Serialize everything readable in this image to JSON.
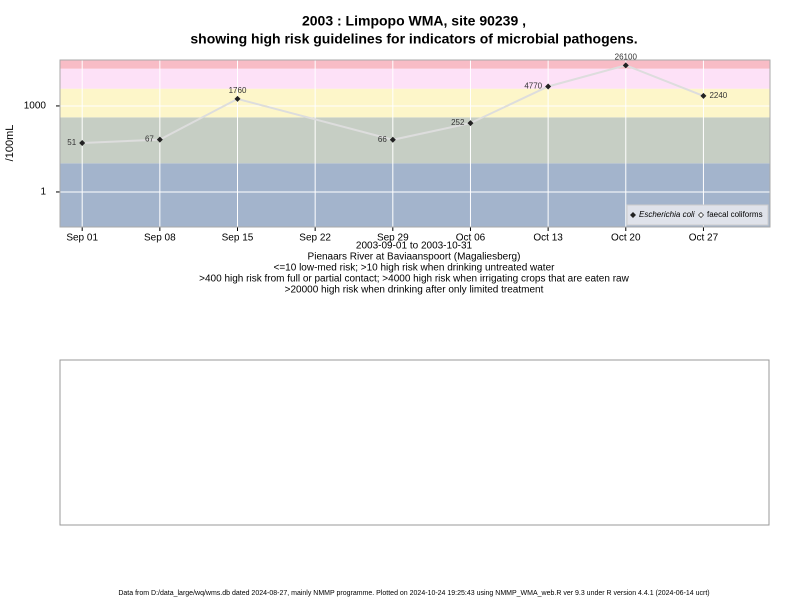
{
  "chart_data": {
    "type": "line",
    "title": "2003 : Limpopo WMA, site 90239 ,",
    "title2": "showing high risk guidelines for indicators of microbial pathogens.",
    "ylabel": "/100mL",
    "subtitle_lines": [
      "2003-09-01 to 2003-10-31",
      "Pienaars River at Baviaanspoort (Magaliesberg)",
      "<=10 low-med risk; >10 high risk when drinking untreated water",
      ">400 high risk from full or partial contact; >4000 high risk when irrigating crops that are eaten raw",
      ">20000 high risk when drinking after only limited treatment"
    ],
    "footer": "Data from D:/data_large/wq/wms.db dated 2024-08-27, mainly NMMP programme. Plotted on 2024-10-24 19:25:43 using NMMP_WMA_web.R ver 9.3 under R version 4.4.1 (2024-06-14 ucrt)",
    "x": [
      "2003-09-01",
      "2003-09-08",
      "2003-09-15",
      "2003-09-29",
      "2003-10-06",
      "2003-10-13",
      "2003-10-20",
      "2003-10-27"
    ],
    "series": [
      {
        "name": "Escherichia coli",
        "color": "#222222",
        "line_color": "#dddddd",
        "values": [
          51,
          67,
          1760,
          66,
          252,
          4770,
          26100,
          2240
        ]
      },
      {
        "name": "faecal coliforms",
        "color": "#222222",
        "line_color": "#dddddd",
        "values": [
          null,
          null,
          null,
          null,
          null,
          null,
          null,
          null
        ]
      }
    ],
    "xlim": [
      "2003-08-30",
      "2003-11-02"
    ],
    "xticks": [
      {
        "value": "2003-09-01",
        "label": "Sep 01"
      },
      {
        "value": "2003-09-08",
        "label": "Sep 08"
      },
      {
        "value": "2003-09-15",
        "label": "Sep 15"
      },
      {
        "value": "2003-09-22",
        "label": "Sep 22"
      },
      {
        "value": "2003-09-29",
        "label": "Sep 29"
      },
      {
        "value": "2003-10-06",
        "label": "Oct 06"
      },
      {
        "value": "2003-10-13",
        "label": "Oct 13"
      },
      {
        "value": "2003-10-20",
        "label": "Oct 20"
      },
      {
        "value": "2003-10-27",
        "label": "Oct 27"
      }
    ],
    "ylim": [
      0.06,
      40000
    ],
    "yticks": [
      1,
      1000
    ],
    "log_y": true,
    "grid": true,
    "legend": "bottom-right",
    "thresholds": [
      10,
      400,
      4000,
      20000
    ],
    "band_colors": [
      "#a3b4cc",
      "#c6cec4",
      "#fdf6c9",
      "#fde1f7",
      "#f8bcc6"
    ]
  }
}
